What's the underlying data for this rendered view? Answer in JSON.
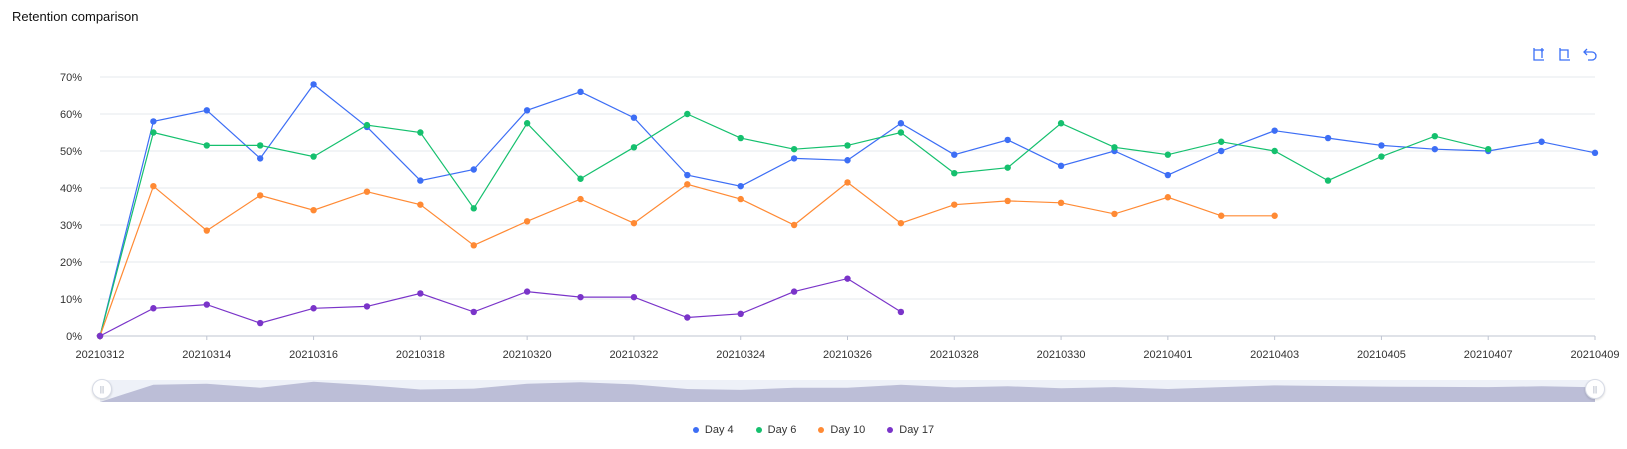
{
  "title": "Retention comparison",
  "toolbox": {
    "items": [
      "zoom-icon",
      "zoom-reset-icon",
      "restore-icon"
    ],
    "color": "#3a6ff7"
  },
  "colors": {
    "day4": "#3d6ef5",
    "day6": "#15c06e",
    "day10": "#ff8a34",
    "day17": "#7a34c9",
    "grid": "#e6e8ee",
    "axis": "#bfc5d2",
    "zoom_fill": "#bcbed7",
    "zoom_bg": "#eef1f8"
  },
  "chart_data": {
    "type": "line",
    "title": "Retention comparison",
    "xlabel": "",
    "ylabel": "",
    "ylim": [
      0,
      70
    ],
    "y_ticks": [
      "0%",
      "10%",
      "20%",
      "30%",
      "40%",
      "50%",
      "60%",
      "70%"
    ],
    "grid": true,
    "legend_position": "bottom-center",
    "x": [
      "20210312",
      "20210313",
      "20210314",
      "20210315",
      "20210316",
      "20210317",
      "20210318",
      "20210319",
      "20210320",
      "20210321",
      "20210322",
      "20210323",
      "20210324",
      "20210325",
      "20210326",
      "20210327",
      "20210328",
      "20210329",
      "20210330",
      "20210331",
      "20210401",
      "20210402",
      "20210403",
      "20210404",
      "20210405",
      "20210406",
      "20210407",
      "20210408",
      "20210409"
    ],
    "x_tick_labels": [
      "20210312",
      "20210314",
      "20210316",
      "20210318",
      "20210320",
      "20210322",
      "20210324",
      "20210326",
      "20210328",
      "20210330",
      "20210401",
      "20210403",
      "20210405",
      "20210407",
      "20210409"
    ],
    "series": [
      {
        "name": "Day 4",
        "color": "#3d6ef5",
        "values": [
          0,
          58,
          61,
          48,
          68,
          56.5,
          42,
          45,
          61,
          66,
          59,
          43.5,
          40.5,
          48,
          47.5,
          57.5,
          49,
          53,
          46,
          50,
          43.5,
          50,
          55.5,
          53.5,
          51.5,
          50.5,
          50,
          52.5,
          49.5
        ]
      },
      {
        "name": "Day 6",
        "color": "#15c06e",
        "values": [
          0,
          55,
          51.5,
          51.5,
          48.5,
          57,
          55,
          34.5,
          57.5,
          42.5,
          51,
          60,
          53.5,
          50.5,
          51.5,
          55,
          44,
          45.5,
          57.5,
          51,
          49,
          52.5,
          50,
          42,
          48.5,
          54,
          50.5,
          null,
          null
        ]
      },
      {
        "name": "Day 10",
        "color": "#ff8a34",
        "values": [
          0,
          40.5,
          28.5,
          38,
          34,
          39,
          35.5,
          24.5,
          31,
          37,
          30.5,
          41,
          37,
          30,
          41.5,
          30.5,
          35.5,
          36.5,
          36,
          33,
          37.5,
          32.5,
          32.5,
          null,
          null,
          null,
          null,
          null,
          null
        ]
      },
      {
        "name": "Day 17",
        "color": "#7a34c9",
        "values": [
          0,
          7.5,
          8.5,
          3.5,
          7.5,
          8,
          11.5,
          6.5,
          12,
          10.5,
          10.5,
          5,
          6,
          12,
          15.5,
          6.5,
          null,
          null,
          null,
          null,
          null,
          null,
          null,
          null,
          null,
          null,
          null,
          null,
          null
        ]
      }
    ],
    "datazoom": {
      "start": 0,
      "end": 100
    }
  },
  "legend": [
    {
      "label": "Day 4",
      "color": "#3d6ef5"
    },
    {
      "label": "Day 6",
      "color": "#15c06e"
    },
    {
      "label": "Day 10",
      "color": "#ff8a34"
    },
    {
      "label": "Day 17",
      "color": "#7a34c9"
    }
  ]
}
